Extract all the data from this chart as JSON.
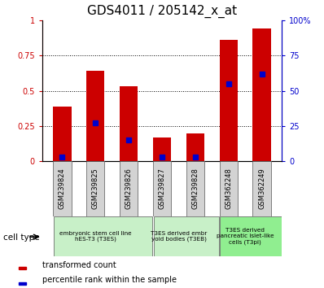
{
  "title": "GDS4011 / 205142_x_at",
  "samples": [
    "GSM239824",
    "GSM239825",
    "GSM239826",
    "GSM239827",
    "GSM239828",
    "GSM362248",
    "GSM362249"
  ],
  "transformed_count": [
    0.39,
    0.64,
    0.53,
    0.17,
    0.2,
    0.86,
    0.94
  ],
  "percentile_rank": [
    3,
    27,
    15,
    3,
    3,
    55,
    62
  ],
  "groups": [
    {
      "label": "embryonic stem cell line\nhES-T3 (T3ES)",
      "start": 0,
      "end": 3,
      "color": "#c8f0c8"
    },
    {
      "label": "T3ES derived embr\nyoid bodies (T3EB)",
      "start": 3,
      "end": 5,
      "color": "#c8f0c8"
    },
    {
      "label": "T3ES derived\npancreatic islet-like\ncells (T3pi)",
      "start": 5,
      "end": 7,
      "color": "#90ee90"
    }
  ],
  "ylim_left": [
    0,
    1
  ],
  "ylim_right": [
    0,
    100
  ],
  "yticks_left": [
    0,
    0.25,
    0.5,
    0.75,
    1
  ],
  "ytick_labels_left": [
    "0",
    "0.25",
    "0.5",
    "0.75",
    "1"
  ],
  "yticks_right": [
    0,
    25,
    50,
    75,
    100
  ],
  "ytick_labels_right": [
    "0",
    "25",
    "50",
    "75",
    "100%"
  ],
  "bar_color": "#cc0000",
  "dot_color": "#0000cc",
  "bar_width": 0.55,
  "cell_type_label": "cell type",
  "legend_bar_label": "transformed count",
  "legend_dot_label": "percentile rank within the sample",
  "left_color": "#cc0000",
  "right_color": "#0000cc",
  "title_fontsize": 11,
  "tick_label_fontsize": 7,
  "sample_label_fontsize": 6
}
